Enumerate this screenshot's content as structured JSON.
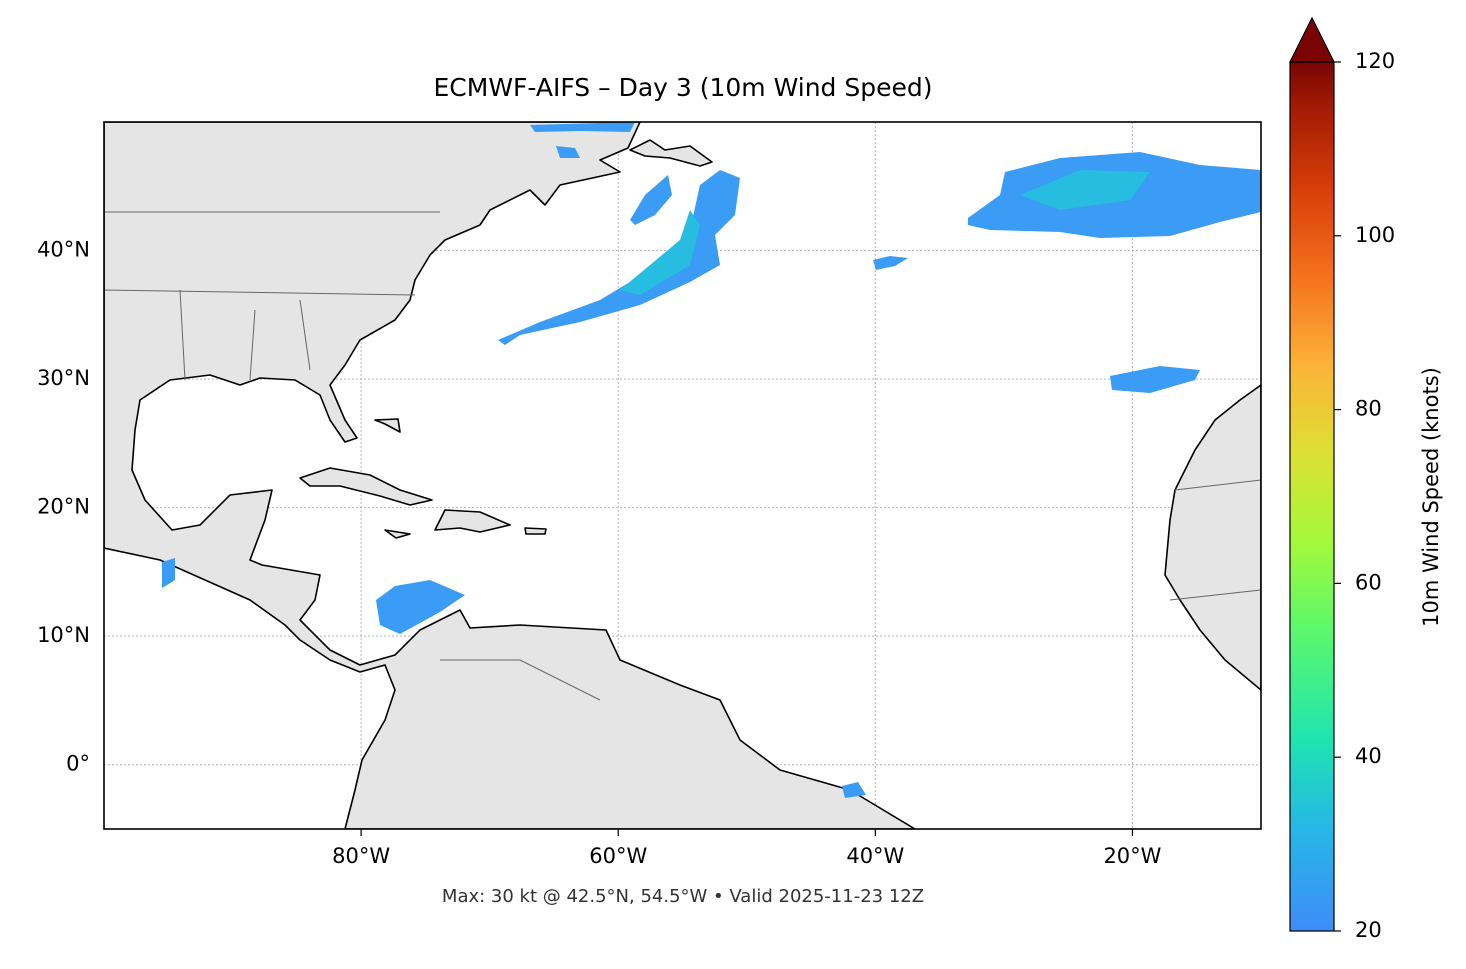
{
  "title": "ECMWF-AIFS – Day 3 (10m Wind Speed)",
  "map": {
    "lonlim": [
      -100,
      -10
    ],
    "latlim": [
      -5,
      50
    ],
    "lonticks": [
      {
        "value": -80,
        "label": "80°W"
      },
      {
        "value": -60,
        "label": "60°W"
      },
      {
        "value": -40,
        "label": "40°W"
      },
      {
        "value": -20,
        "label": "20°W"
      }
    ],
    "latticks": [
      {
        "value": 0,
        "label": "0°"
      },
      {
        "value": 10,
        "label": "10°N"
      },
      {
        "value": 20,
        "label": "20°N"
      },
      {
        "value": 30,
        "label": "30°N"
      },
      {
        "value": 40,
        "label": "40°N"
      }
    ],
    "grid": true
  },
  "colorbar": {
    "label": "10m Wind Speed (knots)",
    "lim": [
      20,
      120
    ],
    "ticks": [
      20,
      40,
      60,
      80,
      100,
      120
    ]
  },
  "footer": "Max: 30 kt @ 42.5°N, 54.5°W • Valid 2025-11-23 12Z"
}
